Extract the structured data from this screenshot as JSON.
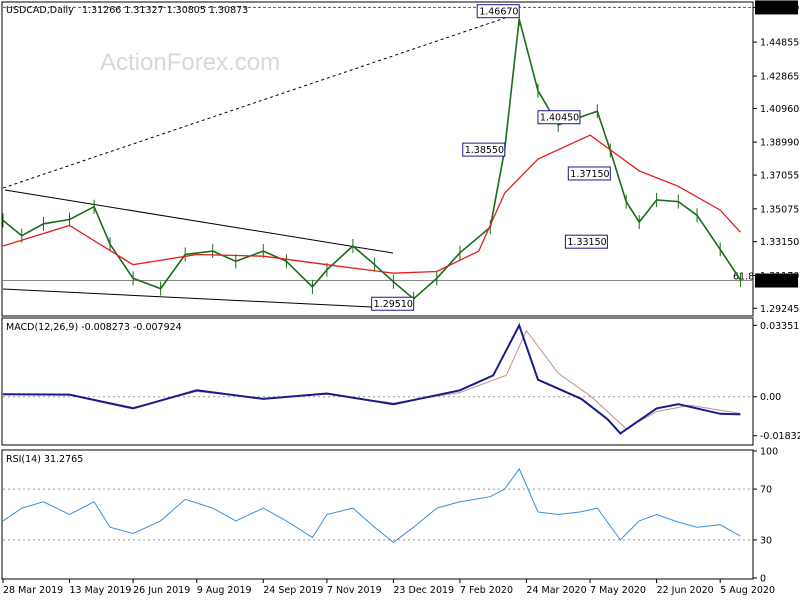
{
  "chart_data": [
    {
      "type": "line",
      "title": "USDCAD,Daily",
      "ohlc": "1.31266 1.31327 1.30805 1.30873",
      "watermark": "ActionForex.com",
      "y_axis_ticks": [
        "1.46890",
        "1.44855",
        "1.42865",
        "1.40960",
        "1.38990",
        "1.37055",
        "1.35075",
        "1.33150",
        "1.31170",
        "1.29245"
      ],
      "ylim": [
        1.2885,
        1.4715
      ],
      "last_price_label": "1.30873",
      "last_price": 1.30873,
      "top_line_value": 1.4689,
      "fib_label": "61.8",
      "annotations": [
        {
          "label": "1.46670",
          "x": "2020-03-19",
          "y": 1.4667
        },
        {
          "label": "1.38550",
          "x": "2020-03-09",
          "y": 1.3855
        },
        {
          "label": "1.40450",
          "x": "2020-04-30",
          "y": 1.4045
        },
        {
          "label": "1.37150",
          "x": "2020-05-21",
          "y": 1.3715
        },
        {
          "label": "1.33150",
          "x": "2020-05-19",
          "y": 1.3315
        },
        {
          "label": "1.29510",
          "x": "2020-01-06",
          "y": 1.2951
        }
      ],
      "series": [
        {
          "name": "",
          "points": [
            [
              "2019-03-28",
              1.344
            ],
            [
              "2019-04-10",
              1.335
            ],
            [
              "2019-04-25",
              1.342
            ],
            [
              "2019-05-13",
              1.3445
            ],
            [
              "2019-05-30",
              1.352
            ],
            [
              "2019-06-10",
              1.33
            ],
            [
              "2019-06-26",
              1.31
            ],
            [
              "2019-07-15",
              1.304
            ],
            [
              "2019-08-01",
              1.324
            ],
            [
              "2019-08-20",
              1.326
            ],
            [
              "2019-09-05",
              1.32
            ],
            [
              "2019-09-24",
              1.326
            ],
            [
              "2019-10-10",
              1.32
            ],
            [
              "2019-10-28",
              1.305
            ],
            [
              "2019-11-07",
              1.315
            ],
            [
              "2019-11-25",
              1.329
            ],
            [
              "2019-12-10",
              1.318
            ],
            [
              "2019-12-23",
              1.308
            ],
            [
              "2020-01-06",
              1.298
            ],
            [
              "2020-01-22",
              1.31
            ],
            [
              "2020-02-07",
              1.325
            ],
            [
              "2020-02-28",
              1.34
            ],
            [
              "2020-03-09",
              1.3855
            ],
            [
              "2020-03-19",
              1.462
            ],
            [
              "2020-04-01",
              1.42
            ],
            [
              "2020-04-15",
              1.4
            ],
            [
              "2020-04-30",
              1.4045
            ],
            [
              "2020-05-12",
              1.408
            ],
            [
              "2020-05-21",
              1.385
            ],
            [
              "2020-06-01",
              1.355
            ],
            [
              "2020-06-10",
              1.343
            ],
            [
              "2020-06-22",
              1.356
            ],
            [
              "2020-07-07",
              1.355
            ],
            [
              "2020-07-20",
              1.347
            ],
            [
              "2020-08-05",
              1.327
            ],
            [
              "2020-08-19",
              1.309
            ]
          ]
        },
        {
          "name": "",
          "points": [
            [
              "2019-03-28",
              1.329
            ],
            [
              "2019-05-13",
              1.341
            ],
            [
              "2019-06-26",
              1.318
            ],
            [
              "2019-08-09",
              1.324
            ],
            [
              "2019-09-24",
              1.323
            ],
            [
              "2019-11-07",
              1.318
            ],
            [
              "2019-12-23",
              1.313
            ],
            [
              "2020-01-22",
              1.314
            ],
            [
              "2020-02-20",
              1.326
            ],
            [
              "2020-03-09",
              1.36
            ],
            [
              "2020-04-01",
              1.38
            ],
            [
              "2020-05-07",
              1.394
            ],
            [
              "2020-06-10",
              1.373
            ],
            [
              "2020-07-07",
              1.364
            ],
            [
              "2020-08-05",
              1.35
            ],
            [
              "2020-08-19",
              1.337
            ]
          ]
        }
      ]
    },
    {
      "type": "line",
      "title": "MACD(12,26,9) -0.008273 -0.007924",
      "y_axis_ticks": [
        "0.033515",
        "0.00",
        "-0.018324"
      ],
      "ylim": [
        -0.0222,
        0.0365
      ],
      "series": [
        {
          "name": "",
          "points": [
            [
              "2019-03-28",
              0.0012
            ],
            [
              "2019-05-13",
              0.001
            ],
            [
              "2019-06-26",
              -0.0055
            ],
            [
              "2019-08-09",
              0.003
            ],
            [
              "2019-09-24",
              -0.001
            ],
            [
              "2019-11-07",
              0.0015
            ],
            [
              "2019-12-23",
              -0.0035
            ],
            [
              "2020-02-07",
              0.003
            ],
            [
              "2020-03-01",
              0.01
            ],
            [
              "2020-03-19",
              0.0335
            ],
            [
              "2020-04-01",
              0.008
            ],
            [
              "2020-05-01",
              -0.001
            ],
            [
              "2020-05-19",
              -0.0105
            ],
            [
              "2020-05-28",
              -0.0172
            ],
            [
              "2020-06-22",
              -0.0055
            ],
            [
              "2020-07-07",
              -0.0035
            ],
            [
              "2020-08-05",
              -0.008
            ],
            [
              "2020-08-19",
              -0.0083
            ]
          ]
        },
        {
          "name": "",
          "points": [
            [
              "2019-03-28",
              0.0012
            ],
            [
              "2019-05-13",
              0.001
            ],
            [
              "2019-06-26",
              -0.005
            ],
            [
              "2019-08-09",
              0.0025
            ],
            [
              "2019-09-24",
              -0.0008
            ],
            [
              "2019-11-07",
              0.0012
            ],
            [
              "2019-12-23",
              -0.003
            ],
            [
              "2020-02-07",
              0.002
            ],
            [
              "2020-03-10",
              0.01
            ],
            [
              "2020-03-24",
              0.031
            ],
            [
              "2020-04-15",
              0.011
            ],
            [
              "2020-05-07",
              0.0005
            ],
            [
              "2020-06-01",
              -0.015
            ],
            [
              "2020-06-22",
              -0.007
            ],
            [
              "2020-07-15",
              -0.004
            ],
            [
              "2020-08-19",
              -0.0079
            ]
          ]
        }
      ]
    },
    {
      "type": "line",
      "title": "RSI(14) 31.2765",
      "y_axis_ticks": [
        "100",
        "70",
        "30",
        "0"
      ],
      "ylim": [
        0,
        100
      ],
      "series": [
        {
          "name": "",
          "points": [
            [
              "2019-03-28",
              45
            ],
            [
              "2019-04-10",
              55
            ],
            [
              "2019-04-25",
              60
            ],
            [
              "2019-05-13",
              50
            ],
            [
              "2019-05-30",
              60
            ],
            [
              "2019-06-10",
              40
            ],
            [
              "2019-06-26",
              35
            ],
            [
              "2019-07-15",
              45
            ],
            [
              "2019-08-01",
              62
            ],
            [
              "2019-08-20",
              55
            ],
            [
              "2019-09-05",
              45
            ],
            [
              "2019-09-24",
              55
            ],
            [
              "2019-10-10",
              45
            ],
            [
              "2019-10-28",
              32
            ],
            [
              "2019-11-07",
              50
            ],
            [
              "2019-11-25",
              55
            ],
            [
              "2019-12-10",
              40
            ],
            [
              "2019-12-23",
              28
            ],
            [
              "2020-01-06",
              40
            ],
            [
              "2020-01-22",
              55
            ],
            [
              "2020-02-07",
              60
            ],
            [
              "2020-02-28",
              64
            ],
            [
              "2020-03-09",
              70
            ],
            [
              "2020-03-19",
              86
            ],
            [
              "2020-04-01",
              52
            ],
            [
              "2020-04-15",
              50
            ],
            [
              "2020-04-30",
              52
            ],
            [
              "2020-05-12",
              55
            ],
            [
              "2020-05-28",
              30
            ],
            [
              "2020-06-10",
              45
            ],
            [
              "2020-06-22",
              50
            ],
            [
              "2020-07-07",
              44
            ],
            [
              "2020-07-20",
              40
            ],
            [
              "2020-08-05",
              42
            ],
            [
              "2020-08-19",
              33
            ]
          ]
        }
      ]
    }
  ],
  "x_axis_ticks": [
    {
      "label": "28 Mar 2019",
      "date": "2019-03-28"
    },
    {
      "label": "13 May 2019",
      "date": "2019-05-13"
    },
    {
      "label": "26 Jun 2019",
      "date": "2019-06-26"
    },
    {
      "label": "9 Aug 2019",
      "date": "2019-08-09"
    },
    {
      "label": "24 Sep 2019",
      "date": "2019-09-24"
    },
    {
      "label": "7 Nov 2019",
      "date": "2019-11-07"
    },
    {
      "label": "23 Dec 2019",
      "date": "2019-12-23"
    },
    {
      "label": "7 Feb 2020",
      "date": "2020-02-07"
    },
    {
      "label": "24 Mar 2020",
      "date": "2020-03-24"
    },
    {
      "label": "7 May 2020",
      "date": "2020-05-07"
    },
    {
      "label": "22 Jun 2020",
      "date": "2020-06-22"
    },
    {
      "label": "5 Aug 2020",
      "date": "2020-08-05"
    }
  ],
  "colors": {
    "price": "#1a6b1a",
    "moving_average": "#e0201e",
    "macd_line": "#1a1a8a",
    "macd_signal": "#c09090",
    "rsi_line": "#3a90e0",
    "annotation_border": "#1a1a8a",
    "axis_label_bg": "#000000"
  }
}
